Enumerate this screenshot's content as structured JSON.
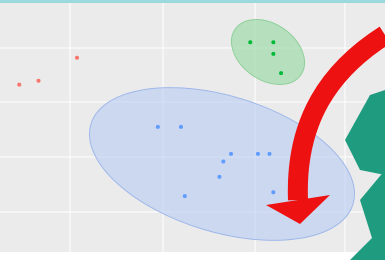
{
  "chart_data": {
    "type": "scatter",
    "series": [
      {
        "color": "#f8766d",
        "x": [
          0.5,
          1.0,
          2.0
        ],
        "values": [
          4.3,
          4.4,
          5.0
        ]
      },
      {
        "color": "#619cff",
        "x": [
          4.1,
          4.7,
          5.8,
          6.0,
          5.7,
          4.8,
          6.7,
          7.0,
          7.1
        ],
        "values": [
          3.2,
          3.2,
          2.3,
          2.5,
          1.9,
          1.4,
          2.5,
          2.5,
          1.5
        ]
      },
      {
        "color": "#00ba38",
        "x": [
          6.5,
          7.1,
          7.1,
          7.3
        ],
        "values": [
          5.4,
          5.4,
          5.1,
          4.6
        ]
      }
    ],
    "xlim": [
      0,
      10
    ],
    "ylim": [
      0,
      6.5
    ]
  }
}
